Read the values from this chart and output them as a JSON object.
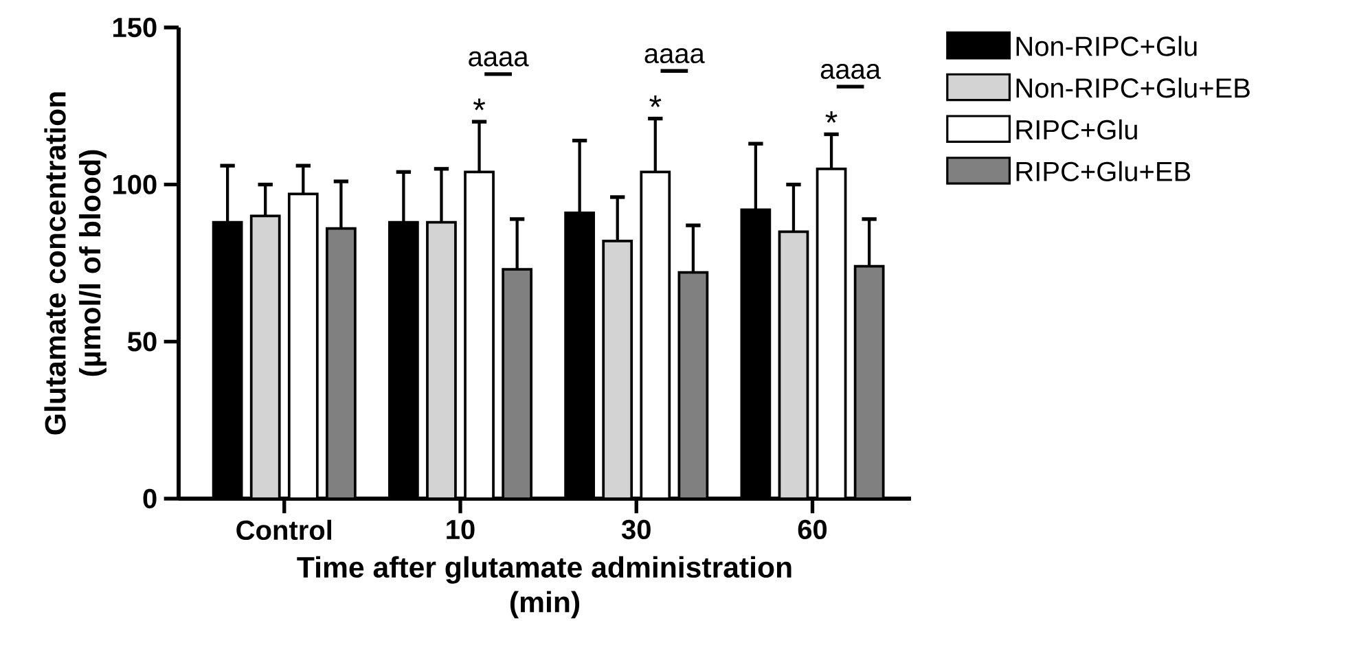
{
  "chart_data": {
    "type": "bar",
    "xlabel": "Time after glutamate administration\n(min)",
    "ylabel": "Glutamate concentration\n(µmol/l of blood)",
    "categories": [
      "Control",
      "10",
      "30",
      "60"
    ],
    "series": [
      {
        "name": "Non-RIPC+Glu",
        "color": "#000000",
        "values": [
          88,
          88,
          91,
          92
        ],
        "errors": [
          [
            88,
            106
          ],
          [
            88,
            104
          ],
          [
            91,
            114
          ],
          [
            92,
            113
          ]
        ]
      },
      {
        "name": "Non-RIPC+Glu+EB",
        "color": "#d3d3d3",
        "values": [
          90,
          88,
          82,
          85
        ],
        "errors": [
          [
            90,
            100
          ],
          [
            88,
            105
          ],
          [
            82,
            96
          ],
          [
            85,
            100
          ]
        ]
      },
      {
        "name": "RIPC+Glu",
        "color": "#ffffff",
        "values": [
          97,
          104,
          104,
          105
        ],
        "errors": [
          [
            97,
            106
          ],
          [
            104,
            120
          ],
          [
            104,
            121
          ],
          [
            105,
            116
          ]
        ]
      },
      {
        "name": "RIPC+Glu+EB",
        "color": "#808080",
        "values": [
          86,
          73,
          72,
          74
        ],
        "errors": [
          [
            86,
            101
          ],
          [
            73,
            89
          ],
          [
            72,
            87
          ],
          [
            74,
            89
          ]
        ]
      }
    ],
    "annotations": [
      "*",
      "*",
      "*",
      "aaaa",
      "aaaa",
      "aaaa"
    ],
    "ylim": [
      0,
      150
    ],
    "yticks": [
      0,
      50,
      100,
      150
    ],
    "legend": "top right"
  }
}
